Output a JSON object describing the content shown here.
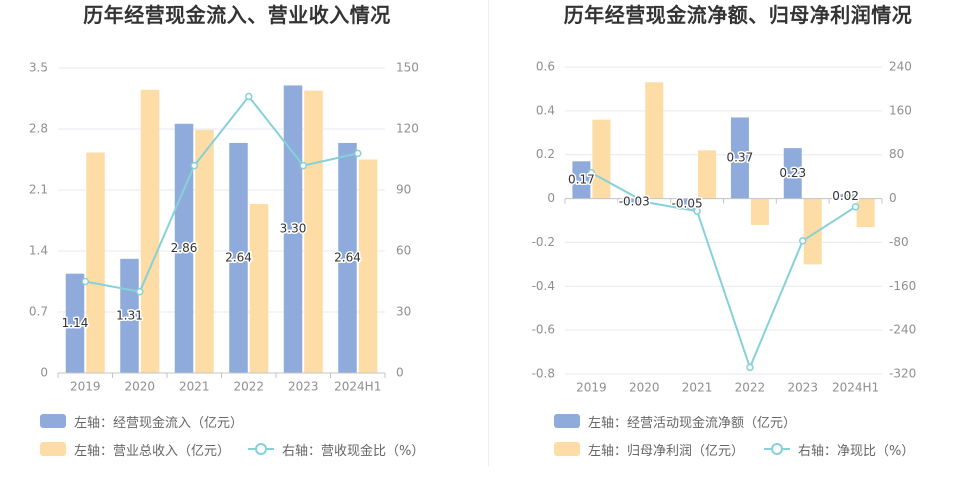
{
  "chart_data": [
    {
      "type": "bar",
      "title": "历年经营现金流入、营业收入情况",
      "categories": [
        "2019",
        "2020",
        "2021",
        "2022",
        "2023",
        "2024H1"
      ],
      "y_left": {
        "range": [
          0,
          3.5
        ],
        "ticks": [
          "0",
          "0.7",
          "1.4",
          "2.1",
          "2.8",
          "3.5"
        ]
      },
      "y_right": {
        "range": [
          0,
          150
        ],
        "ticks": [
          "0",
          "30",
          "60",
          "90",
          "120",
          "150"
        ]
      },
      "grid": true,
      "legend_position": "bottom-left",
      "series": [
        {
          "name": "左轴：经营现金流入（亿元）",
          "type": "bar",
          "color": "#8eabdb",
          "values": [
            1.14,
            1.31,
            2.86,
            2.64,
            3.3,
            2.64
          ],
          "labels": [
            "1.14",
            "1.31",
            "2.86",
            "2.64",
            "3.30",
            "2.64"
          ]
        },
        {
          "name": "左轴：营业总收入（亿元）",
          "type": "bar",
          "color": "#fedca5",
          "values": [
            2.53,
            3.25,
            2.79,
            1.94,
            3.24,
            2.45
          ]
        },
        {
          "name": "右轴：营收现金比（%）",
          "type": "line",
          "color": "#86d1d8",
          "values": [
            45,
            40,
            102,
            136,
            102,
            108
          ]
        }
      ]
    },
    {
      "type": "bar",
      "title": "历年经营现金流净额、归母净利润情况",
      "categories": [
        "2019",
        "2020",
        "2021",
        "2022",
        "2023",
        "2024H1"
      ],
      "y_left": {
        "range": [
          -0.8,
          0.6
        ],
        "ticks": [
          "-0.8",
          "-0.6",
          "-0.4",
          "-0.2",
          "0",
          "0.2",
          "0.4",
          "0.6"
        ]
      },
      "y_right": {
        "range": [
          -320,
          240
        ],
        "ticks": [
          "-320",
          "-240",
          "-160",
          "-80",
          "0",
          "80",
          "160",
          "240"
        ]
      },
      "grid": true,
      "legend_position": "bottom-left",
      "series": [
        {
          "name": "左轴：经营活动现金流净额（亿元）",
          "type": "bar",
          "color": "#8eabdb",
          "values": [
            0.17,
            -0.03,
            -0.05,
            0.37,
            0.23,
            0.02
          ],
          "labels": [
            "0.17",
            "-0.03",
            "-0.05",
            "0.37",
            "0.23",
            "0.02"
          ]
        },
        {
          "name": "左轴：归母净利润（亿元）",
          "type": "bar",
          "color": "#fedca5",
          "values": [
            0.36,
            0.53,
            0.22,
            -0.12,
            -0.3,
            -0.13
          ]
        },
        {
          "name": "右轴：净现比（%）",
          "type": "line",
          "color": "#86d1d8",
          "values": [
            47,
            -6,
            -23,
            -308,
            -77,
            -15
          ]
        }
      ]
    }
  ]
}
